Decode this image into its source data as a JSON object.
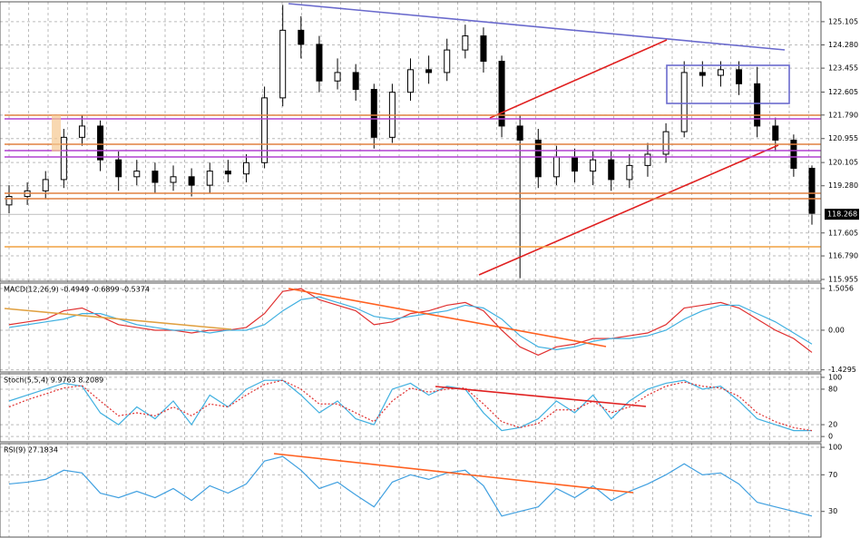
{
  "chart_data": [
    {
      "type": "candlestick",
      "color": "#000000",
      "open": [
        118.6,
        118.9,
        119.1,
        119.5,
        121.0,
        121.4,
        120.2,
        119.6,
        119.8,
        119.4,
        119.6,
        119.3,
        119.8,
        119.7,
        120.1,
        122.4,
        124.8,
        124.3,
        123.0,
        123.3,
        122.7,
        121.0,
        122.6,
        123.4,
        123.3,
        124.1,
        124.6,
        123.7,
        121.4,
        120.9,
        119.6,
        120.3,
        119.8,
        120.2,
        119.5,
        120.0,
        120.4,
        121.2,
        123.3,
        123.2,
        123.4,
        122.9,
        121.4,
        120.9,
        119.9
      ],
      "high": [
        119.3,
        119.4,
        119.8,
        121.3,
        121.8,
        121.6,
        120.5,
        120.2,
        120.1,
        120.0,
        119.9,
        120.1,
        120.2,
        120.4,
        122.8,
        125.7,
        125.3,
        124.6,
        123.8,
        123.6,
        122.9,
        122.9,
        123.8,
        123.9,
        124.5,
        125.0,
        124.9,
        123.9,
        121.8,
        121.3,
        120.7,
        120.6,
        120.5,
        120.5,
        120.4,
        120.8,
        121.5,
        123.7,
        123.7,
        123.7,
        123.7,
        123.5,
        121.7,
        121.1,
        120.0
      ],
      "low": [
        118.3,
        118.6,
        118.8,
        119.2,
        120.7,
        119.8,
        119.1,
        119.3,
        119.0,
        119.1,
        118.9,
        119.0,
        119.4,
        119.4,
        119.9,
        122.1,
        123.8,
        122.6,
        122.7,
        122.3,
        120.6,
        120.8,
        122.3,
        122.9,
        123.0,
        123.8,
        123.3,
        121.0,
        116.0,
        119.2,
        119.3,
        119.4,
        119.3,
        119.1,
        119.2,
        119.6,
        120.1,
        121.0,
        122.8,
        122.8,
        122.5,
        121.0,
        120.5,
        119.6,
        117.9
      ],
      "close": [
        118.9,
        119.1,
        119.5,
        121.0,
        121.4,
        120.2,
        119.6,
        119.8,
        119.4,
        119.6,
        119.3,
        119.8,
        119.7,
        120.1,
        122.4,
        124.8,
        124.3,
        123.0,
        123.3,
        122.7,
        121.0,
        122.6,
        123.4,
        123.3,
        124.1,
        124.6,
        123.7,
        121.4,
        120.9,
        119.6,
        120.3,
        119.8,
        120.2,
        119.5,
        120.0,
        120.4,
        121.2,
        123.3,
        123.2,
        123.4,
        122.9,
        121.4,
        120.9,
        119.9,
        118.3
      ],
      "last_price": 118.268,
      "ylim": [
        115.89,
        125.81
      ],
      "yticks": [
        125.105,
        {
          "value": 124.28,
          "label": "124.280"
        },
        123.455,
        122.605,
        {
          "value": 121.79,
          "label": "121.790"
        },
        120.955,
        120.105,
        {
          "value": 119.28,
          "label": "119.280"
        },
        117.605,
        {
          "value": 116.79,
          "label": "116.790"
        },
        115.955
      ],
      "grid": true
    },
    {
      "type": "line",
      "label": "MACD(12,26,9) -0.4949 -0.6899 -0.5374",
      "series": [
        {
          "color": "#e03030",
          "values": [
            0.2,
            0.3,
            0.4,
            0.7,
            0.8,
            0.5,
            0.2,
            0.1,
            0.0,
            0.0,
            -0.1,
            0.0,
            0.0,
            0.1,
            0.6,
            1.4,
            1.5,
            1.1,
            0.9,
            0.7,
            0.2,
            0.3,
            0.6,
            0.7,
            0.9,
            1.0,
            0.7,
            0.0,
            -0.6,
            -0.9,
            -0.6,
            -0.5,
            -0.3,
            -0.3,
            -0.2,
            -0.1,
            0.2,
            0.8,
            0.9,
            1.0,
            0.8,
            0.4,
            0.0,
            -0.3,
            -0.8
          ]
        },
        {
          "color": "#40b0e0",
          "values": [
            0.1,
            0.2,
            0.3,
            0.4,
            0.6,
            0.6,
            0.4,
            0.2,
            0.1,
            0.0,
            0.0,
            -0.1,
            0.0,
            0.0,
            0.2,
            0.7,
            1.1,
            1.2,
            1.0,
            0.8,
            0.5,
            0.4,
            0.5,
            0.6,
            0.7,
            0.9,
            0.8,
            0.4,
            -0.2,
            -0.6,
            -0.7,
            -0.6,
            -0.4,
            -0.3,
            -0.3,
            -0.2,
            0.0,
            0.4,
            0.7,
            0.9,
            0.9,
            0.6,
            0.3,
            -0.1,
            -0.5
          ]
        }
      ],
      "ylim": [
        -1.506,
        1.7
      ],
      "yticks": [
        1.5056,
        {
          "value": 0,
          "label": "0.00"
        },
        -1.4295
      ],
      "grid": true
    },
    {
      "type": "line",
      "label": "Stoch(5,5,4) 9.9763 8.2089",
      "series": [
        {
          "color": "#40b0e0",
          "values": [
            60,
            70,
            80,
            90,
            85,
            40,
            20,
            50,
            30,
            60,
            20,
            70,
            50,
            80,
            95,
            95,
            70,
            40,
            60,
            30,
            20,
            80,
            90,
            70,
            85,
            80,
            40,
            10,
            15,
            30,
            60,
            40,
            70,
            30,
            60,
            80,
            90,
            95,
            80,
            85,
            60,
            30,
            20,
            10,
            10
          ]
        },
        {
          "color": "#e03030",
          "dash": true,
          "values": [
            50,
            62,
            72,
            82,
            86,
            60,
            35,
            40,
            35,
            50,
            35,
            55,
            50,
            70,
            88,
            95,
            80,
            55,
            55,
            40,
            25,
            60,
            82,
            75,
            80,
            82,
            55,
            25,
            15,
            22,
            45,
            45,
            60,
            40,
            50,
            70,
            85,
            92,
            85,
            82,
            68,
            40,
            25,
            15,
            10
          ]
        }
      ],
      "ylim": [
        -9,
        106
      ],
      "yticks": [
        100,
        80,
        20,
        0
      ],
      "grid": true
    },
    {
      "type": "line",
      "label": "RSI(9) 27.1834",
      "series": [
        {
          "color": "#40a0e0",
          "values": [
            60,
            62,
            65,
            75,
            72,
            50,
            45,
            52,
            45,
            55,
            42,
            58,
            50,
            60,
            85,
            90,
            75,
            55,
            62,
            48,
            35,
            62,
            70,
            65,
            72,
            75,
            58,
            25,
            30,
            35,
            55,
            45,
            58,
            42,
            52,
            60,
            70,
            82,
            70,
            72,
            60,
            40,
            35,
            30,
            25
          ]
        }
      ],
      "ylim": [
        2,
        104
      ],
      "yticks": [
        100,
        70,
        30
      ],
      "grid": true
    }
  ]
}
